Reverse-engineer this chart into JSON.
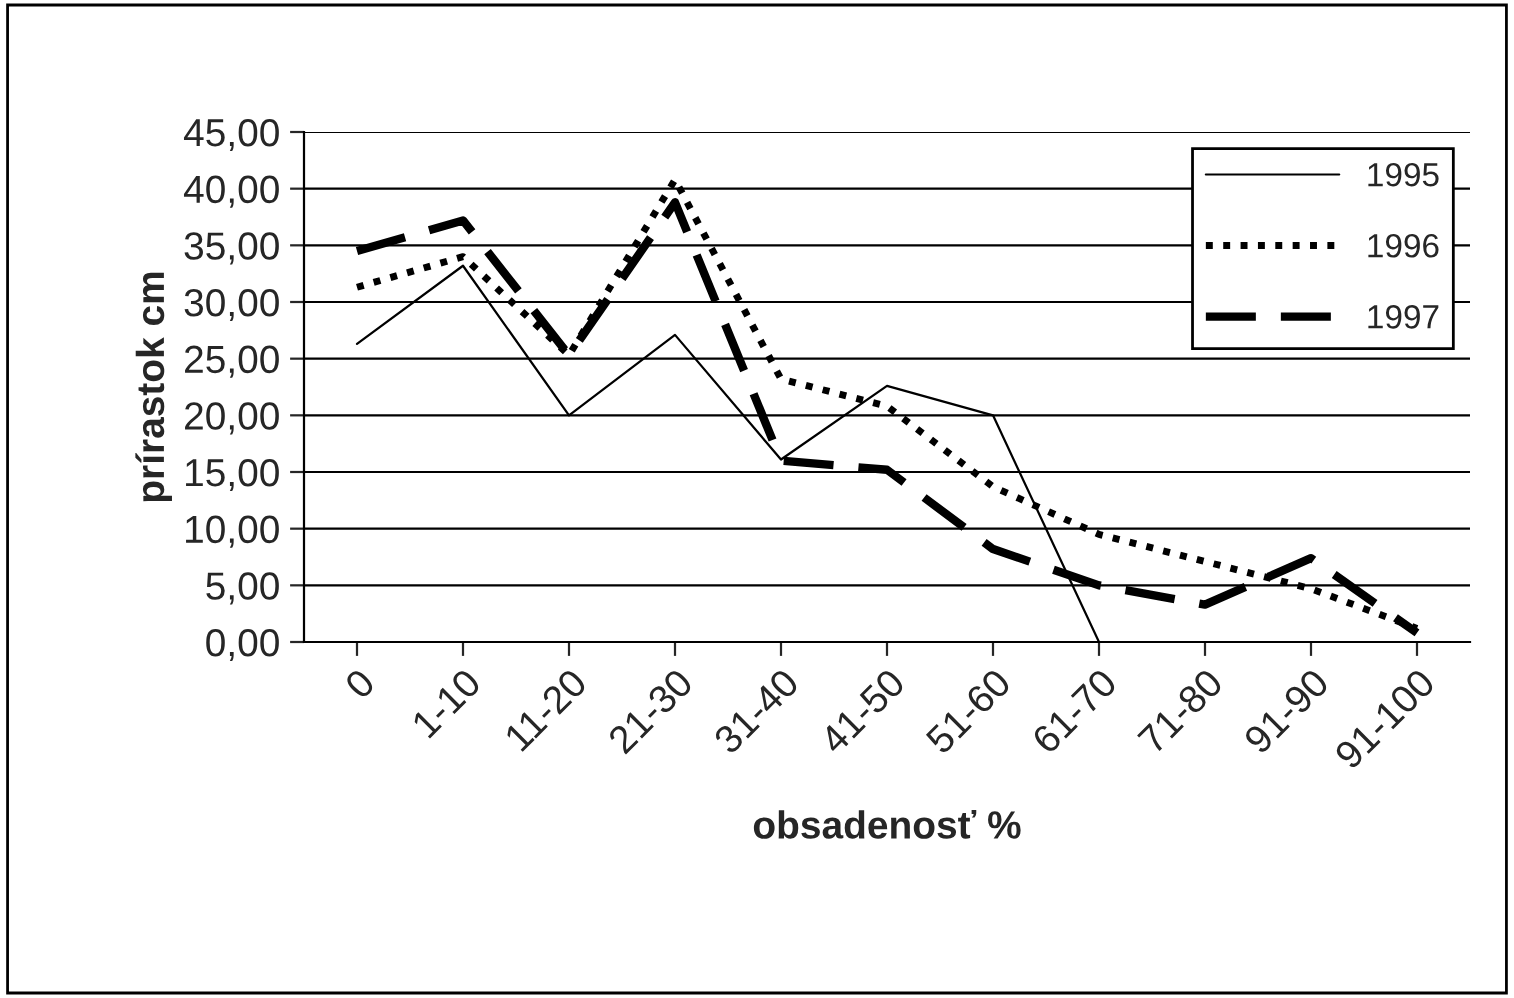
{
  "chart_data": {
    "type": "line",
    "xlabel": "obsadenosť %",
    "ylabel": "prírastok cm",
    "categories": [
      "0",
      "1-10",
      "11-20",
      "21-30",
      "31-40",
      "41-50",
      "51-60",
      "61-70",
      "71-80",
      "91-90",
      "91-100"
    ],
    "series": [
      {
        "name": "1995",
        "color": "#000000",
        "line_style": "solid",
        "values": [
          26.3,
          33.2,
          20.0,
          27.1,
          16.1,
          22.6,
          20.0,
          0.0,
          null,
          null,
          null
        ]
      },
      {
        "name": "1996",
        "color": "#000000",
        "line_style": "dotted",
        "values": [
          31.3,
          34.0,
          25.3,
          40.8,
          23.2,
          20.8,
          13.7,
          9.5,
          7.1,
          4.7,
          1.2
        ]
      },
      {
        "name": "1997",
        "color": "#000000",
        "line_style": "dashed",
        "values": [
          34.5,
          37.2,
          25.3,
          38.8,
          16.0,
          15.2,
          8.2,
          5.0,
          3.3,
          7.4,
          0.8
        ]
      }
    ],
    "ylim": [
      0,
      45
    ],
    "yticks": [
      {
        "value": 0,
        "label": "0,00"
      },
      {
        "value": 5,
        "label": "5,00"
      },
      {
        "value": 10,
        "label": "10,00"
      },
      {
        "value": 15,
        "label": "15,00"
      },
      {
        "value": 20,
        "label": "20,00"
      },
      {
        "value": 25,
        "label": "25,00"
      },
      {
        "value": 30,
        "label": "30,00"
      },
      {
        "value": 35,
        "label": "35,00"
      },
      {
        "value": 40,
        "label": "40,00"
      },
      {
        "value": 45,
        "label": "45,00"
      }
    ],
    "grid": "y",
    "legend": "top right",
    "marker": "none"
  }
}
